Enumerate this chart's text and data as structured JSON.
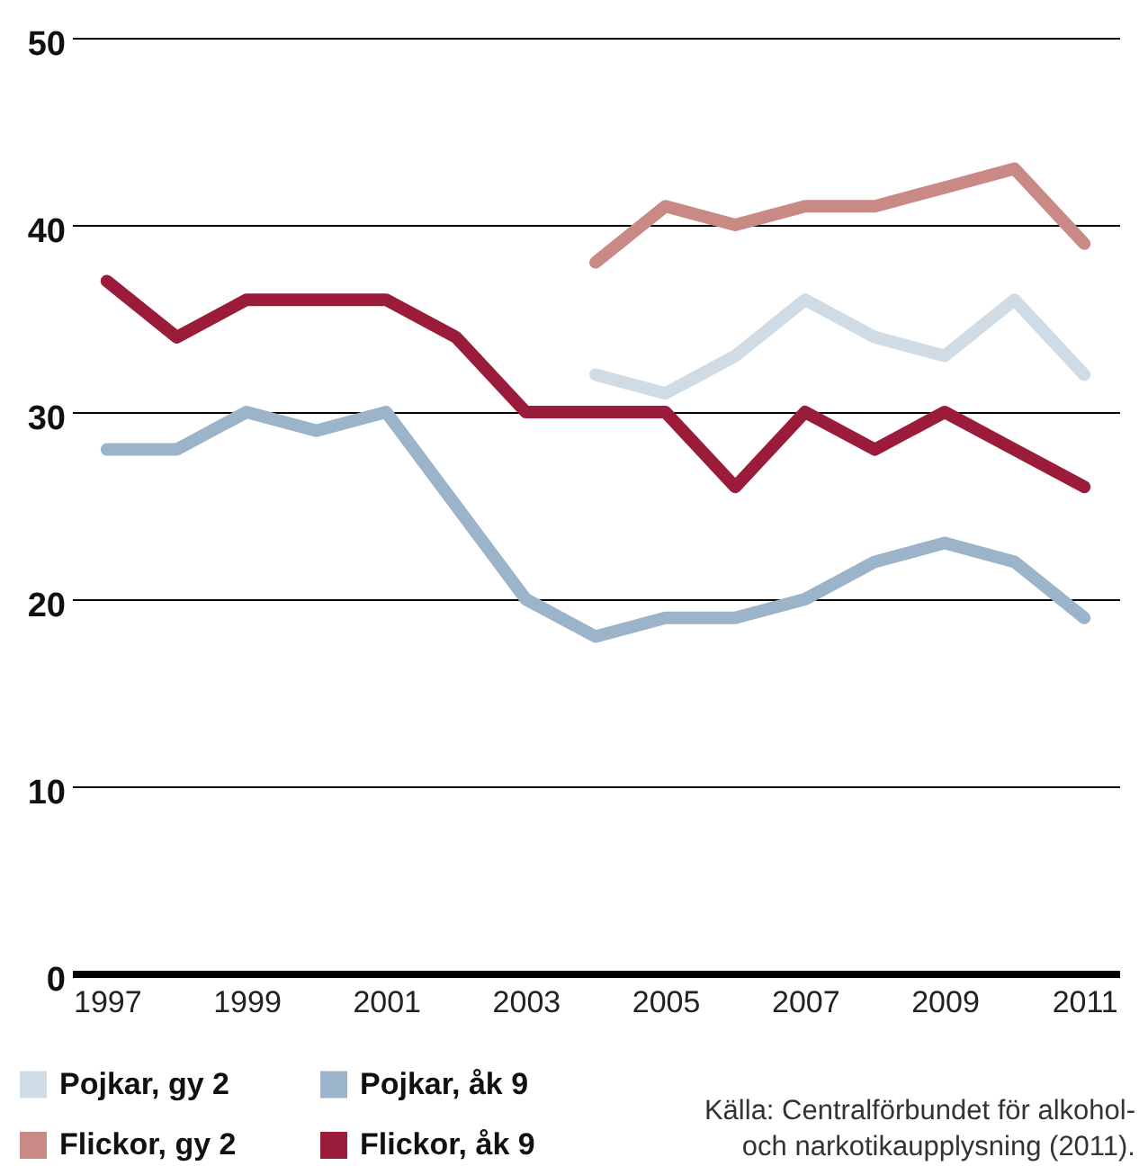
{
  "chart_data": {
    "type": "line",
    "x": [
      1997,
      1998,
      1999,
      2000,
      2001,
      2002,
      2003,
      2004,
      2005,
      2006,
      2007,
      2008,
      2009,
      2010,
      2011
    ],
    "xlim": [
      1996.5,
      2011.5
    ],
    "xticks": [
      1997,
      1999,
      2001,
      2003,
      2005,
      2007,
      2009,
      2011
    ],
    "ylim": [
      0,
      50
    ],
    "yticks": [
      0,
      10,
      20,
      30,
      40,
      50
    ],
    "grid": "y",
    "legend": "bottom left",
    "line_style": "solid",
    "annotations": [
      "Källa: Centralförbundet för alkohol- och narkotikaupplysning (2011)."
    ],
    "series": [
      {
        "name": "Pojkar, gy 2",
        "color": "#cfdce6",
        "x": [
          2004,
          2005,
          2006,
          2007,
          2008,
          2009,
          2010,
          2011
        ],
        "values": [
          32,
          31,
          33,
          36,
          34,
          33,
          36,
          32
        ]
      },
      {
        "name": "Pojkar, åk 9",
        "color": "#9cb4c9",
        "values": [
          28,
          28,
          30,
          29,
          30,
          25,
          20,
          18,
          19,
          19,
          20,
          22,
          23,
          22,
          19
        ]
      },
      {
        "name": "Flickor, gy 2",
        "color": "#c98a86",
        "x": [
          2004,
          2005,
          2006,
          2007,
          2008,
          2009,
          2010,
          2011
        ],
        "values": [
          38,
          41,
          40,
          41,
          41,
          42,
          43,
          39
        ]
      },
      {
        "name": "Flickor, åk 9",
        "color": "#9b1b3a",
        "values": [
          37,
          34,
          36,
          36,
          36,
          34,
          30,
          30,
          30,
          26,
          30,
          28,
          30,
          28,
          26
        ]
      }
    ]
  }
}
